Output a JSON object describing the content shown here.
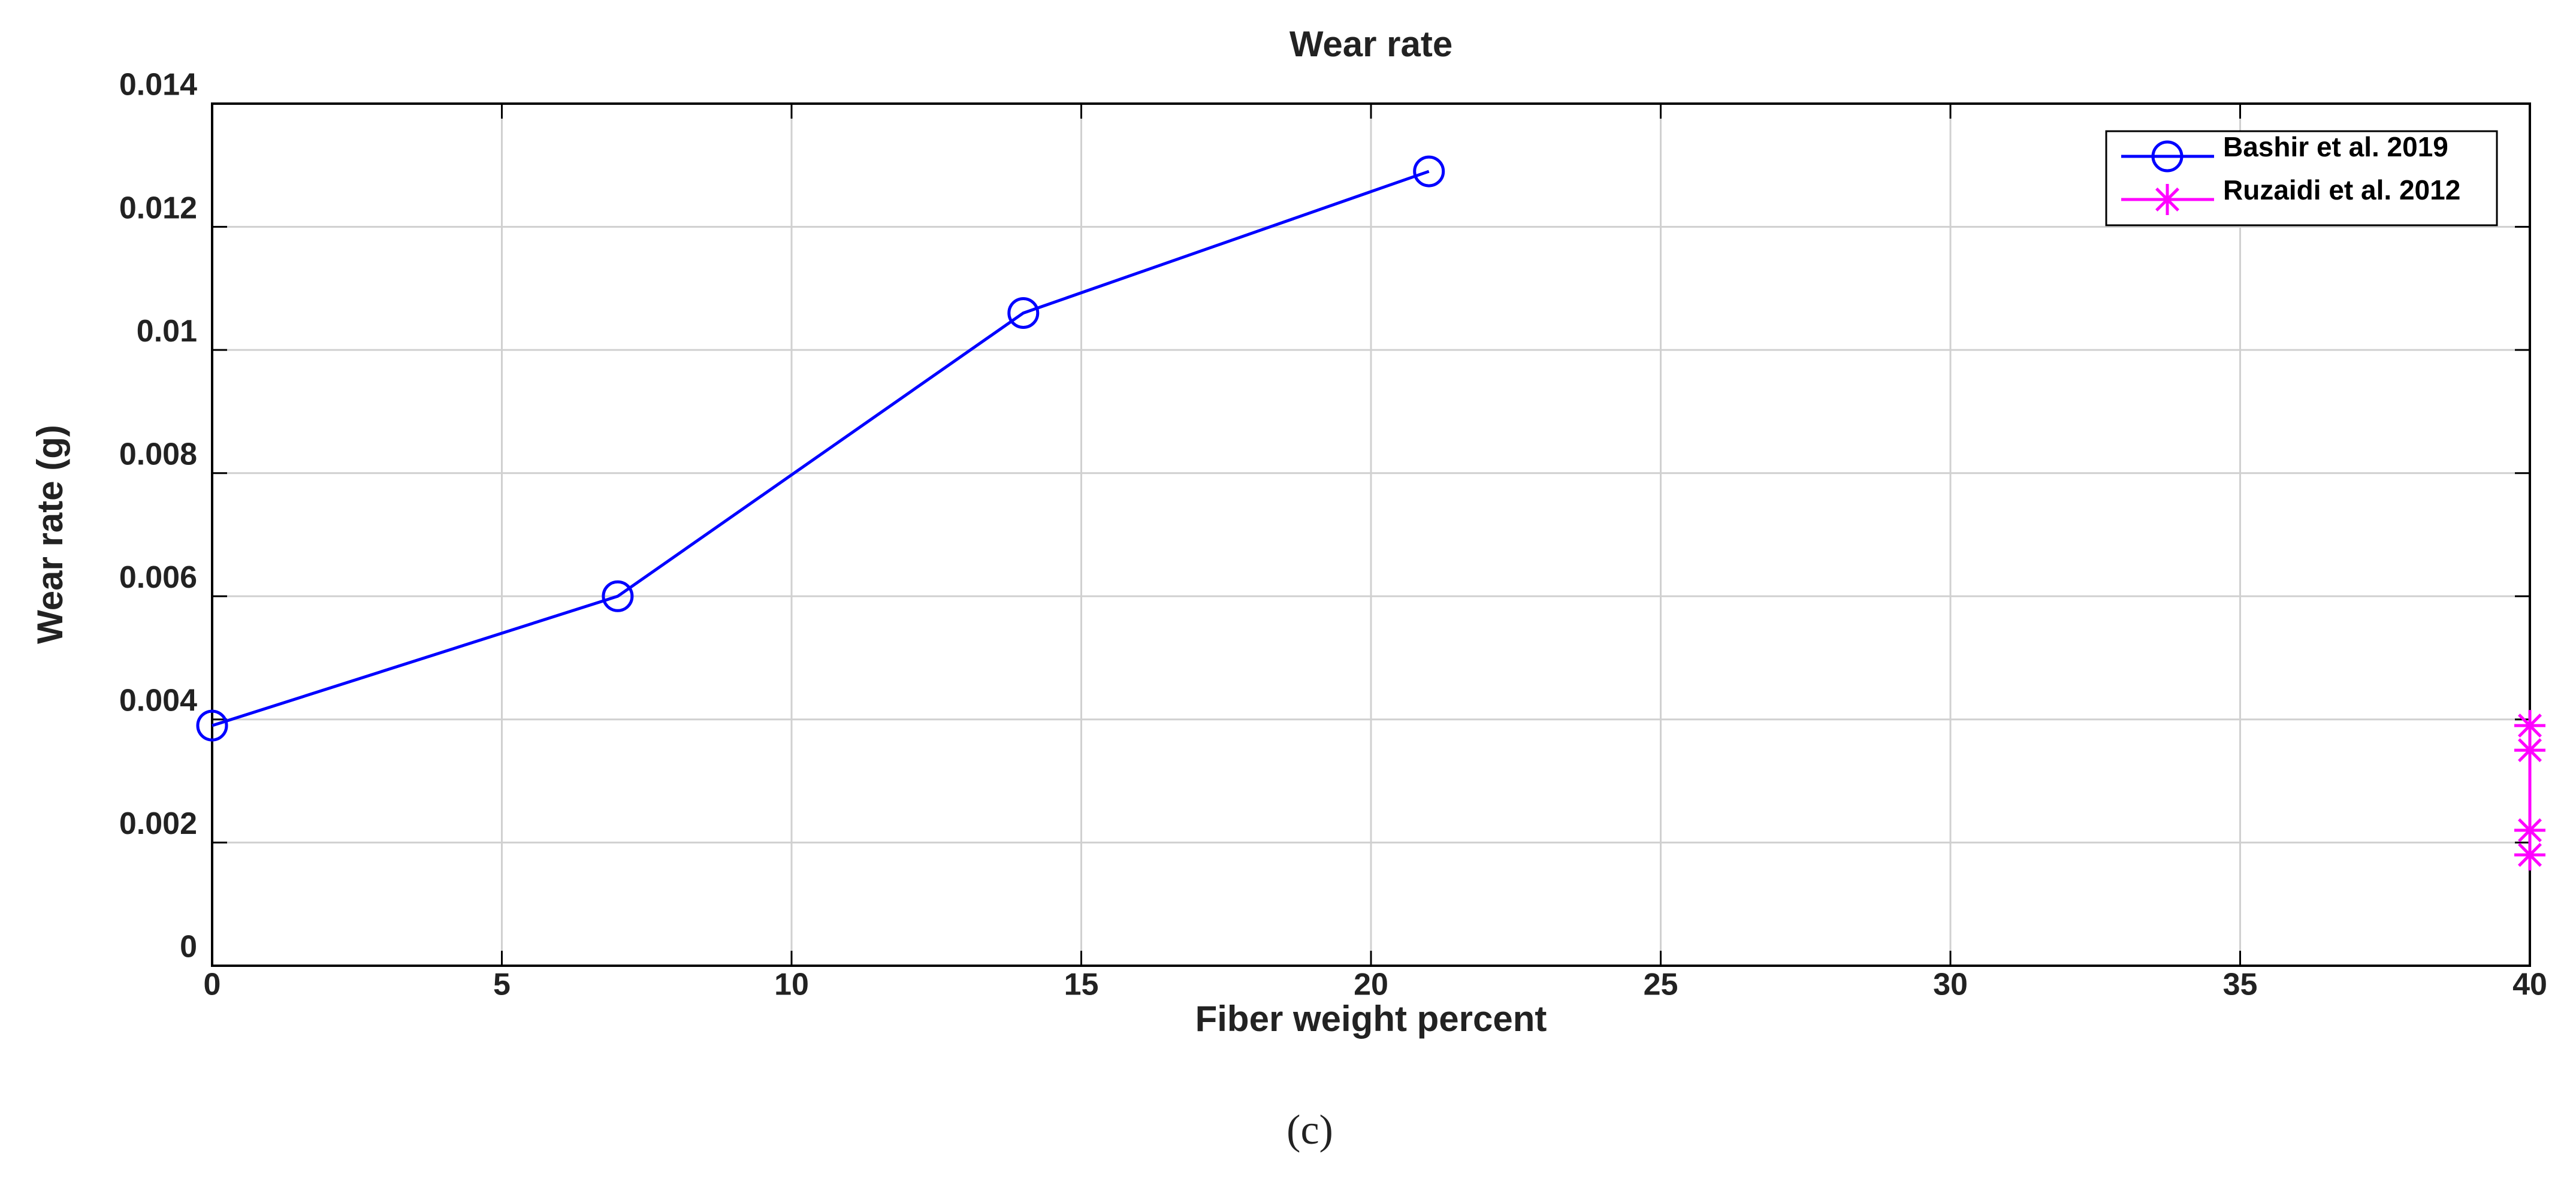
{
  "chart_data": {
    "type": "line",
    "title": "Wear rate",
    "xlabel": "Fiber weight percent",
    "ylabel": "Wear rate (g)",
    "caption": "(c)",
    "series": [
      {
        "name": "Bashir et al. 2019",
        "color": "#0000ff",
        "marker": "circle",
        "x": [
          0,
          7,
          14,
          21
        ],
        "values": [
          0.0039,
          0.006,
          0.0106,
          0.0129
        ]
      },
      {
        "name": "Ruzaidi et al. 2012",
        "color": "#ff00ff",
        "marker": "asterisk",
        "x": [
          40,
          40,
          40,
          40
        ],
        "values": [
          0.0039,
          0.0035,
          0.0022,
          0.0018
        ]
      }
    ],
    "xlim": [
      0,
      40
    ],
    "xticks": [
      0,
      5,
      10,
      15,
      20,
      25,
      30,
      35,
      40
    ],
    "ylim": [
      0,
      0.014
    ],
    "yticks": [
      0,
      0.002,
      0.004,
      0.006,
      0.008,
      0.01,
      0.012,
      0.014
    ],
    "grid": true,
    "legend": "northeast"
  }
}
